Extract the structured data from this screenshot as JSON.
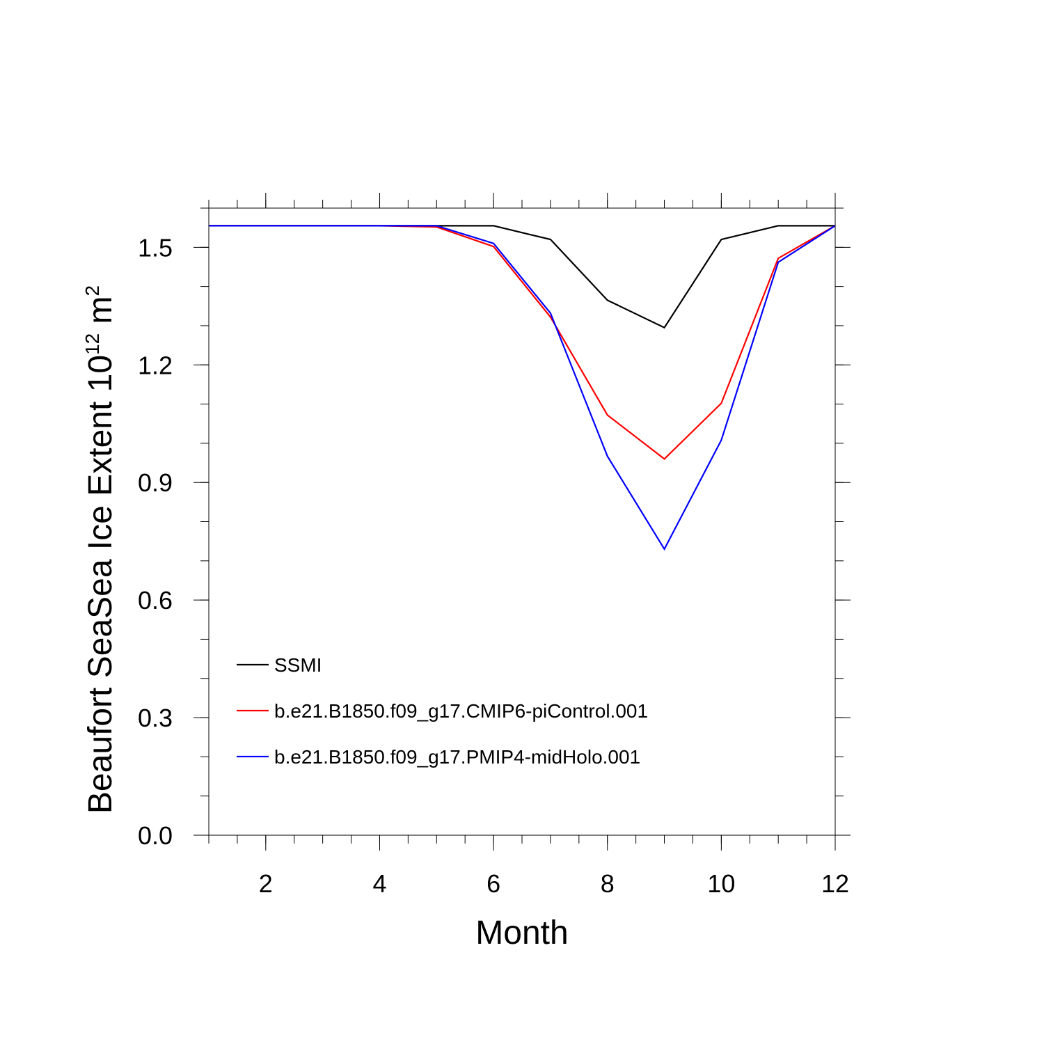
{
  "chart_data": {
    "type": "line",
    "title": "",
    "xlabel": "Month",
    "ylabel": {
      "prefix": "Beaufort SeaSea Ice Extent 10",
      "exp1": "12",
      "unit": " m",
      "exp2": "2"
    },
    "xlim": [
      1,
      12
    ],
    "ylim": [
      0,
      1.6
    ],
    "x_ticks": [
      2,
      4,
      6,
      8,
      10,
      12
    ],
    "y_ticks": [
      0.0,
      0.3,
      0.6,
      0.9,
      1.2,
      1.5
    ],
    "x_tick_labels": [
      "2",
      "4",
      "6",
      "8",
      "10",
      "12"
    ],
    "y_tick_labels": [
      "0.0",
      "0.3",
      "0.6",
      "0.9",
      "1.2",
      "1.5"
    ],
    "x": [
      1,
      2,
      3,
      4,
      5,
      6,
      7,
      8,
      9,
      10,
      11,
      12
    ],
    "series": [
      {
        "name": "SSMI",
        "color": "#000000",
        "values": [
          1.555,
          1.555,
          1.555,
          1.555,
          1.555,
          1.555,
          1.52,
          1.365,
          1.295,
          1.52,
          1.555,
          1.555
        ]
      },
      {
        "name": "b.e21.B1850.f09_g17.CMIP6-piControl.001",
        "color": "#ff0000",
        "values": [
          1.555,
          1.555,
          1.555,
          1.555,
          1.552,
          1.502,
          1.322,
          1.072,
          0.96,
          1.102,
          1.472,
          1.555
        ]
      },
      {
        "name": "b.e21.B1850.f09_g17.PMIP4-midHolo.001",
        "color": "#0000ff",
        "values": [
          1.555,
          1.555,
          1.555,
          1.555,
          1.555,
          1.51,
          1.332,
          0.967,
          0.73,
          1.008,
          1.462,
          1.555
        ]
      }
    ],
    "legend_position": "bottom-left"
  }
}
